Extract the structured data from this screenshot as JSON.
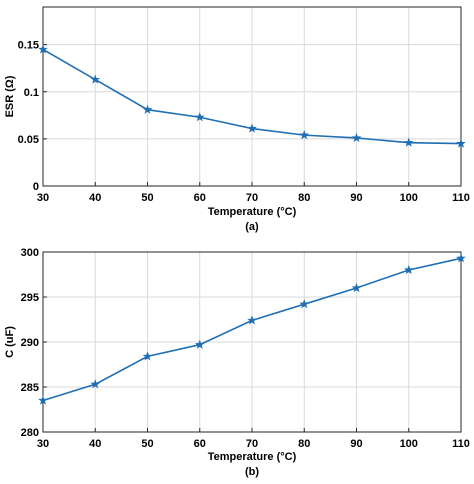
{
  "chart_data": [
    {
      "type": "line",
      "caption": "(a)",
      "xlabel": "Temperature (°C)",
      "ylabel": "ESR (Ω)",
      "xlim": [
        30,
        110
      ],
      "ylim": [
        0,
        0.19
      ],
      "xticks": [
        30,
        40,
        50,
        60,
        70,
        80,
        90,
        100,
        110
      ],
      "yticks": [
        0,
        0.05,
        0.1,
        0.15
      ],
      "ytick_labels": [
        "0",
        "0.05",
        "0.1",
        "0.15"
      ],
      "grid": true,
      "marker": "star",
      "color": "#1f6fb5",
      "x": [
        30,
        40,
        50,
        60,
        70,
        80,
        90,
        100,
        110
      ],
      "y": [
        0.145,
        0.113,
        0.081,
        0.073,
        0.061,
        0.054,
        0.051,
        0.046,
        0.045
      ]
    },
    {
      "type": "line",
      "caption": "(b)",
      "xlabel": "Temperature (°C)",
      "ylabel": "C (uF)",
      "xlim": [
        30,
        110
      ],
      "ylim": [
        280,
        300
      ],
      "xticks": [
        30,
        40,
        50,
        60,
        70,
        80,
        90,
        100,
        110
      ],
      "yticks": [
        280,
        285,
        290,
        295,
        300
      ],
      "ytick_labels": [
        "280",
        "285",
        "290",
        "295",
        "300"
      ],
      "grid": true,
      "marker": "star",
      "color": "#1f6fb5",
      "x": [
        30,
        40,
        50,
        60,
        70,
        80,
        90,
        100,
        110
      ],
      "y": [
        283.5,
        285.3,
        288.4,
        289.7,
        292.4,
        294.2,
        296.0,
        298.0,
        299.3
      ]
    }
  ]
}
